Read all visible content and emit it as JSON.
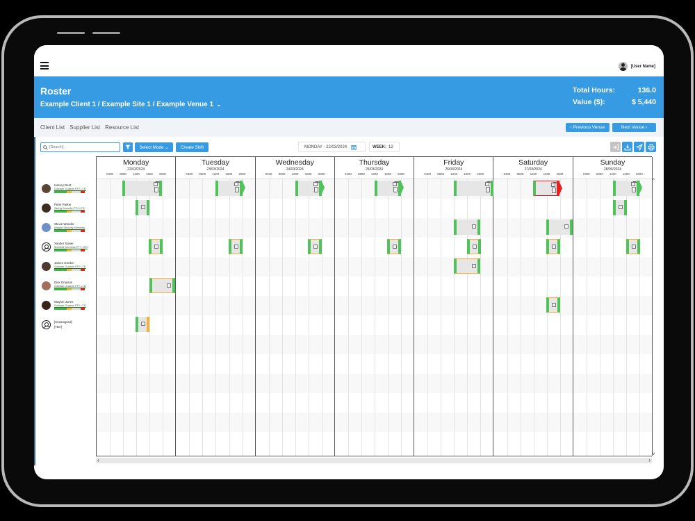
{
  "topbar": {
    "menu_icon": "hamburger-icon",
    "user_name": "[User Name]"
  },
  "banner": {
    "title": "Roster",
    "path": "Example Client 1 / Example Site 1 / Example Venue 1",
    "path_chevron": "⌄",
    "total_hours_label": "Total Hours:",
    "total_hours_value": "136.0",
    "value_label": "Value ($):",
    "value_value": "$ 5,440"
  },
  "subnav": {
    "links": [
      "Client List",
      "Supplier List",
      "Resource List"
    ],
    "prev_venue": "‹  Previous Venue",
    "next_venue": "Next Venue  ›"
  },
  "toolbar": {
    "search_placeholder": "[Search]",
    "select_mode": "Select Mode ⌄",
    "create_shift": "Create Shift",
    "date_label": "MONDAY - 22/03/2024",
    "week_label": "WEEK:",
    "week_value": "12",
    "icon_buttons": [
      "sign-in-icon",
      "download-icon",
      "send-icon",
      "print-icon"
    ]
  },
  "colors": {
    "primary": "#379be3",
    "shift_green": "#4fc25a",
    "warn_orange": "#f6b13d",
    "alert_red": "#e82020"
  },
  "schedule": {
    "time_ticks": [
      "0400",
      "0800",
      "1200",
      "1600",
      "2000"
    ],
    "days": [
      {
        "name": "Monday",
        "date": "22/03/2024"
      },
      {
        "name": "Tuesday",
        "date": "23/03/2024"
      },
      {
        "name": "Wednesday",
        "date": "24/03/2024"
      },
      {
        "name": "Thursday",
        "date": "25/03/2024"
      },
      {
        "name": "Friday",
        "date": "26/03/2024"
      },
      {
        "name": "Saturday",
        "date": "27/03/2024"
      },
      {
        "name": "Sunday",
        "date": "28/03/2024"
      }
    ],
    "people": [
      {
        "name": "Harvey Dent",
        "company": "Gotham Guards PTY LTD",
        "avatar": "photo",
        "avatar_color": "#5a4636"
      },
      {
        "name": "Peter Parker",
        "company": "Swing Security PTY LTD",
        "avatar": "photo",
        "avatar_color": "#3d2c22"
      },
      {
        "name": "Stevie Wonder",
        "company": "Wsight Security Services",
        "avatar": "photo",
        "avatar_color": "#6f8fc7"
      },
      {
        "name": "Xander Xavier",
        "company": "Marshal Services PTY LTD",
        "avatar": "icon",
        "avatar_color": "#ffffff"
      },
      {
        "name": "James Gordon",
        "company": "Gotham Guards PTY LTD",
        "avatar": "photo",
        "avatar_color": "#4c3a2e"
      },
      {
        "name": "Dick Grayson",
        "company": "Gotham Guards PTY LTD",
        "avatar": "photo",
        "avatar_color": "#a0705a"
      },
      {
        "name": "Waylon Jones",
        "company": "Gotham Guards PTY LTD",
        "avatar": "photo",
        "avatar_color": "#3a2419"
      },
      {
        "name": "[Unassigned]",
        "company": "[TBA]",
        "avatar": "icon",
        "avatar_color": "#ffffff"
      }
    ]
  }
}
